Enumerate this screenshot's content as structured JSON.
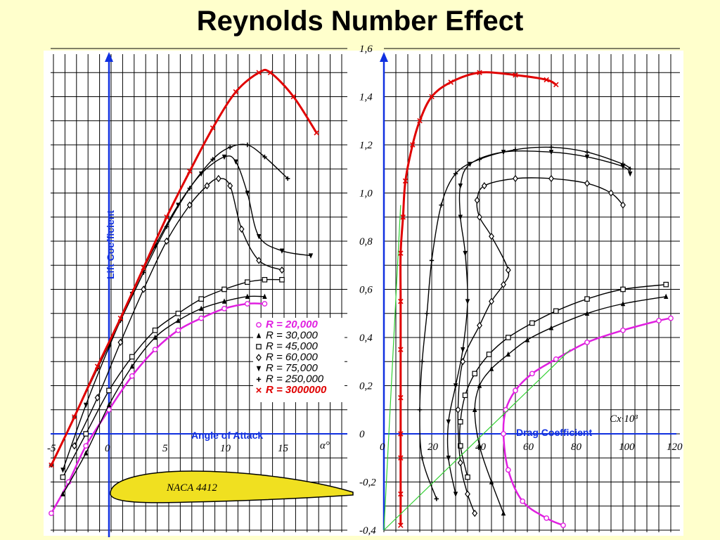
{
  "title": "Reynolds Number Effect",
  "chart_data": [
    {
      "type": "line",
      "xlabel": "Angle of Attack",
      "ylabel": "Lift Coefficient",
      "x_symbol": "α°",
      "xlim": [
        -5,
        20
      ],
      "ylim": [
        -0.4,
        1.6
      ],
      "xticks": [
        "-5",
        "0",
        "5",
        "10",
        "15"
      ],
      "airfoil_label": "NACA 4412",
      "legend_placement": "lower-right",
      "series": [
        {
          "name": "R =    20,000",
          "color": "#e020e0",
          "marker": "o",
          "x": [
            -5,
            -3.5,
            -2,
            0,
            2,
            4,
            6,
            8,
            10,
            12,
            13.5
          ],
          "y": [
            -0.33,
            -0.2,
            -0.05,
            0.1,
            0.24,
            0.35,
            0.43,
            0.48,
            0.52,
            0.54,
            0.54
          ]
        },
        {
          "name": "R =    30,000",
          "color": "#000000",
          "marker": "triangle",
          "x": [
            -4,
            -2,
            0,
            2,
            4,
            6,
            8,
            10,
            12,
            13.5
          ],
          "y": [
            -0.25,
            -0.08,
            0.12,
            0.28,
            0.4,
            0.47,
            0.52,
            0.55,
            0.57,
            0.57
          ]
        },
        {
          "name": "R =    45,000",
          "color": "#000000",
          "marker": "square",
          "x": [
            -4,
            -2,
            0,
            2,
            4,
            6,
            8,
            10,
            12,
            13.5,
            15
          ],
          "y": [
            -0.18,
            0.0,
            0.18,
            0.32,
            0.43,
            0.5,
            0.56,
            0.6,
            0.63,
            0.64,
            0.64
          ]
        },
        {
          "name": "R =    60,000",
          "color": "#000000",
          "marker": "diamond",
          "x": [
            -3,
            -1,
            1,
            3,
            5,
            7,
            8.5,
            9.5,
            10.5,
            11.5,
            13,
            15
          ],
          "y": [
            -0.05,
            0.15,
            0.38,
            0.6,
            0.8,
            0.95,
            1.03,
            1.06,
            1.03,
            0.85,
            0.72,
            0.68
          ]
        },
        {
          "name": "R =    75,000",
          "color": "#000000",
          "marker": "triangle-down",
          "x": [
            -4,
            -2,
            0,
            2,
            4,
            6,
            8,
            10,
            11,
            12,
            13,
            15,
            17.5
          ],
          "y": [
            -0.15,
            0.12,
            0.36,
            0.58,
            0.78,
            0.95,
            1.08,
            1.15,
            1.13,
            1.0,
            0.82,
            0.76,
            0.74
          ]
        },
        {
          "name": "R =   250,000",
          "color": "#000000",
          "marker": "plus",
          "x": [
            -5,
            -3,
            -1,
            1,
            3,
            5,
            7,
            9,
            10.5,
            12,
            13.5,
            15.5
          ],
          "y": [
            -0.13,
            0.07,
            0.27,
            0.47,
            0.67,
            0.86,
            1.02,
            1.14,
            1.19,
            1.2,
            1.15,
            1.06
          ]
        },
        {
          "name": "R = 3000000",
          "color": "#e00000",
          "marker": "x",
          "x": [
            -5,
            -3,
            -1,
            1,
            3,
            5,
            7,
            9,
            11,
            13,
            14,
            16,
            18
          ],
          "y": [
            -0.13,
            0.07,
            0.28,
            0.48,
            0.69,
            0.9,
            1.09,
            1.27,
            1.42,
            1.5,
            1.5,
            1.4,
            1.25
          ]
        }
      ]
    },
    {
      "type": "line",
      "xlabel": "Drag Coefficient",
      "x_unit": "Cx·10³",
      "ylabel": "",
      "xlim": [
        0,
        120
      ],
      "ylim": [
        -0.4,
        1.6
      ],
      "xticks": [
        "0",
        "20",
        "40",
        "60",
        "80",
        "100",
        "120"
      ],
      "yticks": [
        "-0,4",
        "-0,2",
        "0",
        "0,2",
        "0,4",
        "0,6",
        "0,8",
        "1,0",
        "1,2",
        "1,4",
        "1,6"
      ],
      "series": [
        {
          "name": "R =    20,000",
          "color": "#e020e0",
          "marker": "o",
          "x": [
            75,
            68,
            58,
            52,
            50,
            51,
            55,
            62,
            72,
            85,
            100,
            115,
            120
          ],
          "y": [
            -0.38,
            -0.35,
            -0.28,
            -0.15,
            0.0,
            0.1,
            0.18,
            0.25,
            0.31,
            0.38,
            0.43,
            0.47,
            0.48
          ]
        },
        {
          "name": "R =    30,000",
          "color": "#000000",
          "marker": "triangle",
          "x": [
            50,
            45,
            40,
            38,
            40,
            45,
            52,
            60,
            70,
            85,
            100,
            118
          ],
          "y": [
            -0.33,
            -0.2,
            -0.05,
            0.1,
            0.2,
            0.27,
            0.33,
            0.39,
            0.44,
            0.5,
            0.54,
            0.57
          ]
        },
        {
          "name": "R =    45,000",
          "color": "#000000",
          "marker": "square",
          "x": [
            35,
            32,
            32,
            34,
            38,
            44,
            52,
            62,
            72,
            85,
            100,
            118
          ],
          "y": [
            -0.18,
            -0.05,
            0.05,
            0.16,
            0.25,
            0.33,
            0.4,
            0.46,
            0.51,
            0.56,
            0.6,
            0.62
          ]
        },
        {
          "name": "R =    60,000",
          "color": "#000000",
          "marker": "diamond",
          "x": [
            38,
            35,
            32,
            31,
            33,
            40,
            45,
            50,
            52,
            45,
            40,
            39,
            42,
            55,
            70,
            85,
            95,
            100
          ],
          "y": [
            -0.33,
            -0.25,
            -0.12,
            0.1,
            0.3,
            0.45,
            0.55,
            0.62,
            0.68,
            0.82,
            0.9,
            0.97,
            1.03,
            1.06,
            1.06,
            1.04,
            1.0,
            0.95
          ]
        },
        {
          "name": "R =    75,000",
          "color": "#000000",
          "marker": "triangle-down",
          "x": [
            30,
            27,
            27,
            30,
            33,
            35,
            34,
            32,
            32,
            36,
            50,
            70,
            85,
            100,
            103
          ],
          "y": [
            -0.25,
            -0.1,
            0.05,
            0.2,
            0.35,
            0.55,
            0.75,
            0.9,
            1.03,
            1.12,
            1.17,
            1.17,
            1.15,
            1.11,
            1.08
          ]
        },
        {
          "name": "R =   250,000",
          "color": "#000000",
          "marker": "plus",
          "x": [
            22,
            16,
            15,
            16,
            18,
            20,
            24,
            30,
            40,
            55,
            70,
            85,
            100,
            103
          ],
          "y": [
            -0.27,
            -0.1,
            0.1,
            0.3,
            0.5,
            0.72,
            0.95,
            1.08,
            1.14,
            1.18,
            1.19,
            1.17,
            1.12,
            1.1
          ]
        },
        {
          "name": "R = 3000000",
          "color": "#e00000",
          "marker": "x",
          "x": [
            7,
            7,
            7,
            7,
            7,
            7,
            7,
            7,
            8,
            9,
            12,
            15,
            20,
            28,
            40,
            55,
            68,
            72
          ],
          "y": [
            -0.38,
            -0.25,
            -0.1,
            0.0,
            0.15,
            0.35,
            0.55,
            0.75,
            0.9,
            1.05,
            1.2,
            1.3,
            1.4,
            1.46,
            1.5,
            1.49,
            1.47,
            1.45
          ]
        }
      ]
    }
  ]
}
